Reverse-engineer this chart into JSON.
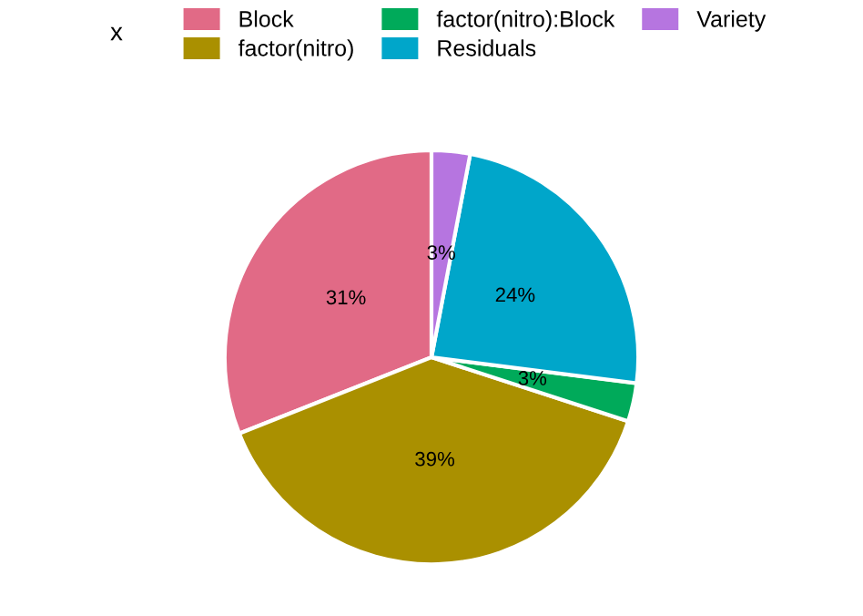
{
  "chart_data": {
    "type": "pie",
    "legend_title": "x",
    "categories": [
      "Block",
      "factor(nitro)",
      "factor(nitro):Block",
      "Residuals",
      "Variety"
    ],
    "values": [
      31,
      39,
      3,
      24,
      3
    ],
    "colors": [
      "#e16a86",
      "#aa9000",
      "#00aa5a",
      "#00a6ca",
      "#b675e0"
    ],
    "value_labels": [
      "31%",
      "39%",
      "3%",
      "24%",
      "3%"
    ],
    "legend": "top"
  }
}
